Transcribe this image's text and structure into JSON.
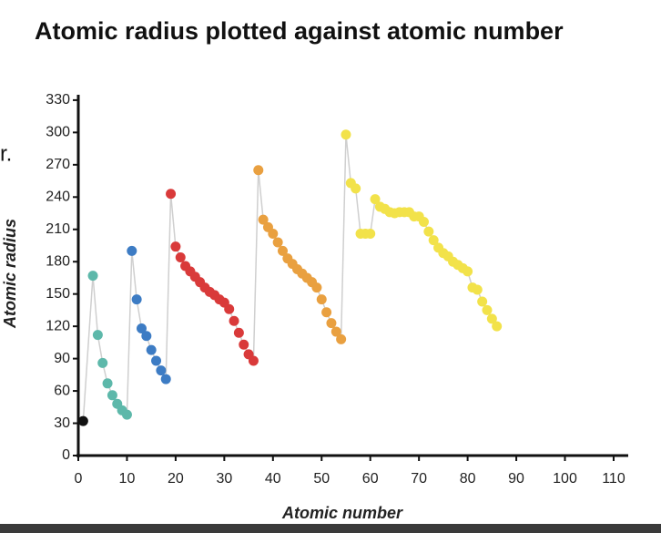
{
  "chart_data": {
    "type": "scatter-line",
    "title": "Atomic radius plotted against atomic number",
    "xlabel": "Atomic number",
    "ylabel": "Atomic radius",
    "side_note": "r.",
    "xlim": [
      0,
      113
    ],
    "ylim": [
      0,
      335
    ],
    "xticks": [
      0,
      10,
      20,
      30,
      40,
      50,
      60,
      70,
      80,
      90,
      100,
      110
    ],
    "yticks": [
      0,
      30,
      60,
      90,
      120,
      150,
      180,
      210,
      240,
      270,
      300,
      330
    ],
    "line_color": "#cfcfcf",
    "series": [
      {
        "color": "#111111",
        "x": [
          1
        ],
        "values": [
          32
        ]
      },
      {
        "color": "#5db8aa",
        "x": [
          3,
          4,
          5,
          6,
          7,
          8,
          9,
          10
        ],
        "values": [
          167,
          112,
          86,
          67,
          56,
          48,
          42,
          38
        ]
      },
      {
        "color": "#3d7cc4",
        "x": [
          11,
          12,
          13,
          14,
          15,
          16,
          17,
          18
        ],
        "values": [
          190,
          145,
          118,
          111,
          98,
          88,
          79,
          71
        ]
      },
      {
        "color": "#d93a3a",
        "x": [
          19,
          20,
          21,
          22,
          23,
          24,
          25,
          26,
          27,
          28,
          29,
          30,
          31,
          32,
          33,
          34,
          35,
          36
        ],
        "values": [
          243,
          194,
          184,
          176,
          171,
          166,
          161,
          156,
          152,
          149,
          145,
          142,
          136,
          125,
          114,
          103,
          94,
          88
        ]
      },
      {
        "color": "#e9a040",
        "x": [
          37,
          38,
          39,
          40,
          41,
          42,
          43,
          44,
          45,
          46,
          47,
          48,
          49,
          50,
          51,
          52,
          53,
          54
        ],
        "values": [
          265,
          219,
          212,
          206,
          198,
          190,
          183,
          178,
          173,
          169,
          165,
          161,
          156,
          145,
          133,
          123,
          115,
          108
        ]
      },
      {
        "color": "#f2e24a",
        "x": [
          55,
          56,
          57,
          58,
          59,
          60,
          61,
          62,
          63,
          64,
          65,
          66,
          67,
          68,
          69,
          70,
          71,
          72,
          73,
          74,
          75,
          76,
          77,
          78,
          79,
          80,
          81,
          82,
          83,
          84,
          85,
          86
        ],
        "values": [
          298,
          253,
          248,
          206,
          206,
          206,
          238,
          231,
          229,
          226,
          225,
          226,
          226,
          226,
          222,
          222,
          217,
          208,
          200,
          193,
          188,
          185,
          180,
          177,
          174,
          171,
          156,
          154,
          143,
          135,
          127,
          120
        ]
      }
    ]
  }
}
